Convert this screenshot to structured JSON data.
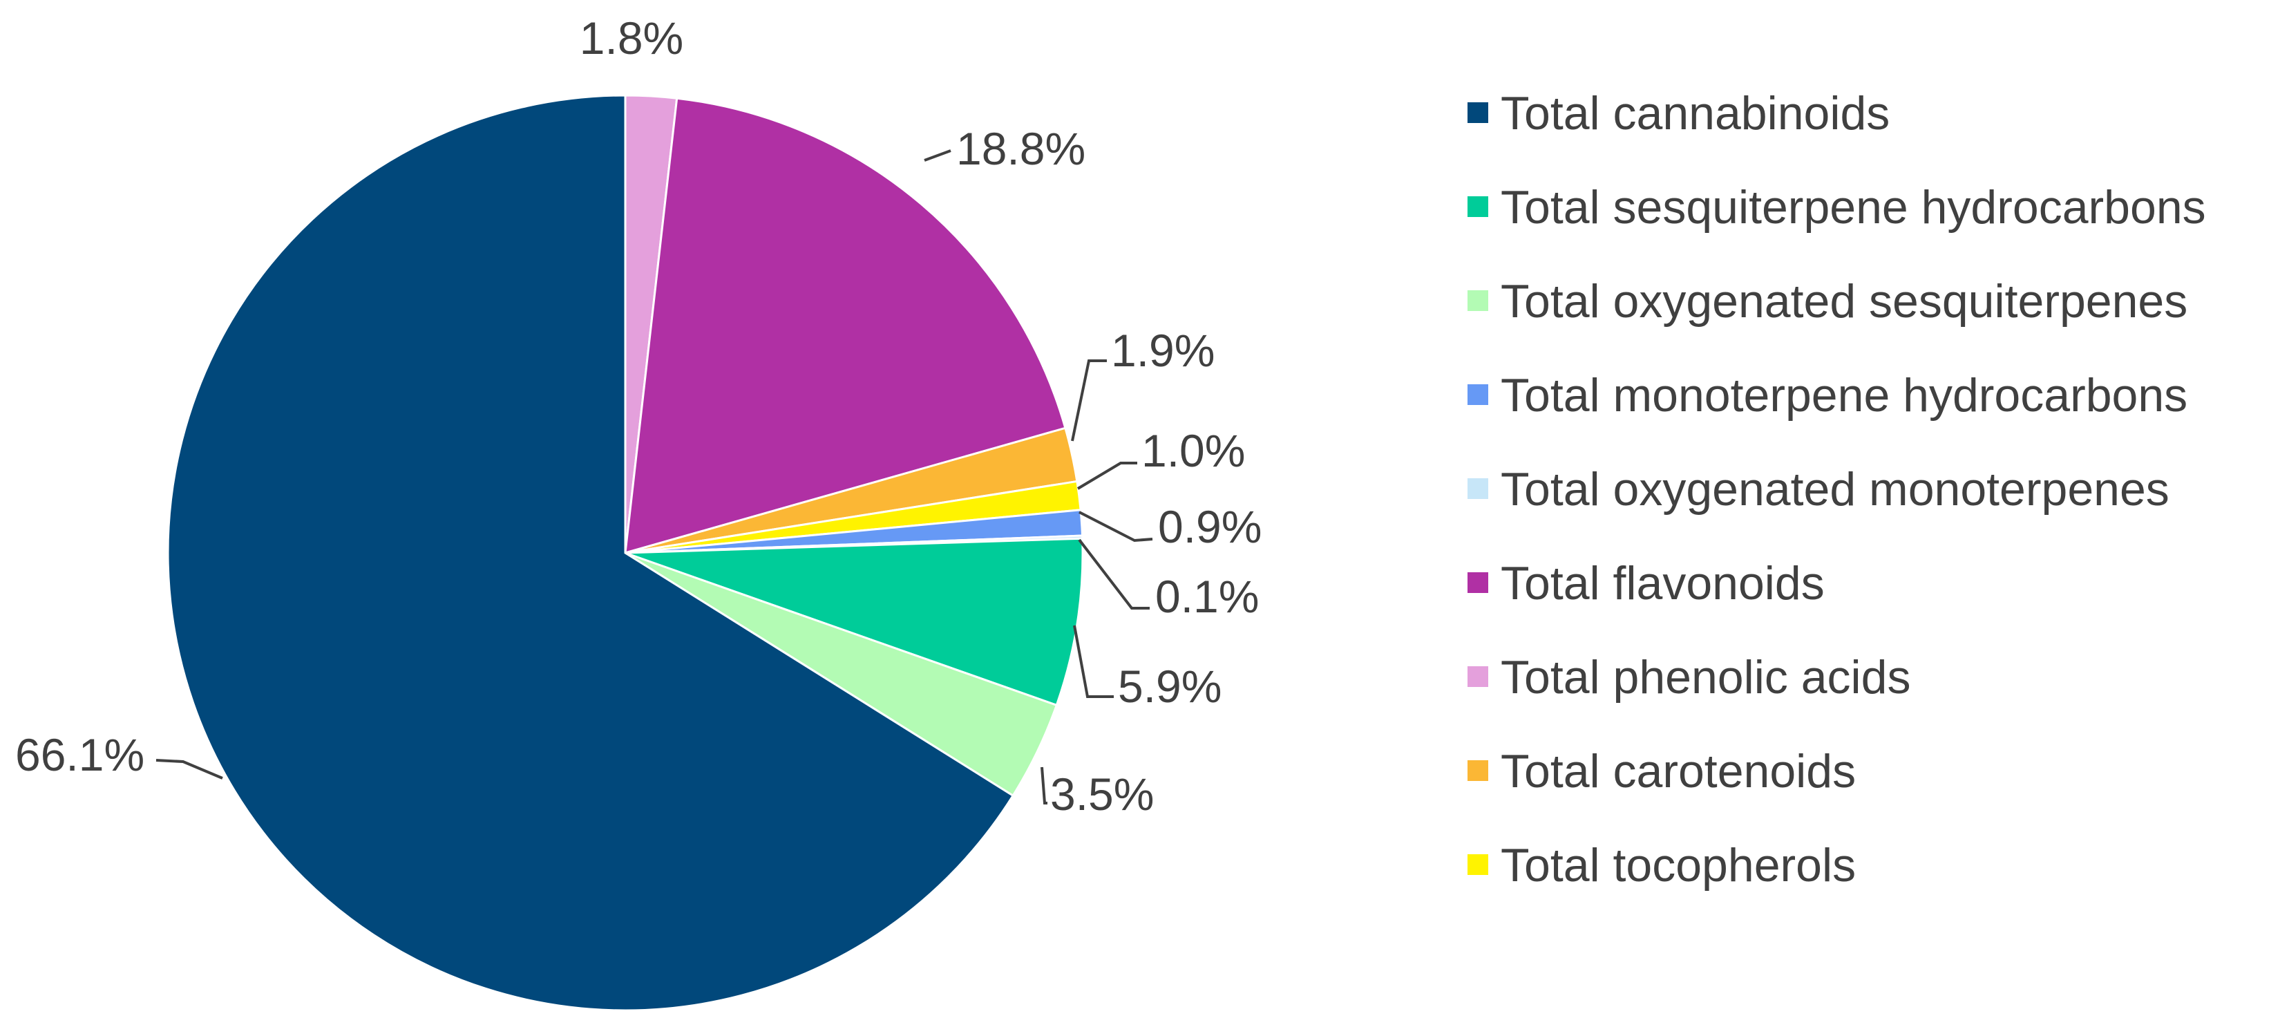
{
  "chart_data": {
    "type": "pie",
    "title": "",
    "start_angle_deg": 0,
    "direction": "clockwise",
    "legend_position": "right",
    "slices": [
      {
        "name": "Total phenolic acids",
        "value": 1.8,
        "label": "1.8%",
        "color": "#e4a0dc"
      },
      {
        "name": "Total flavonoids",
        "value": 18.8,
        "label": "18.8%",
        "color": "#b030a4"
      },
      {
        "name": "Total carotenoids",
        "value": 1.9,
        "label": "1.9%",
        "color": "#fbb735"
      },
      {
        "name": "Total tocopherols",
        "value": 1.0,
        "label": "1.0%",
        "color": "#fff300"
      },
      {
        "name": "Total monoterpene hydrocarbons",
        "value": 0.9,
        "label": "0.9%",
        "color": "#6699f5"
      },
      {
        "name": "Total oxygenated monoterpenes",
        "value": 0.1,
        "label": "0.1%",
        "color": "#c7e6f8"
      },
      {
        "name": "Total sesquiterpene hydrocarbons",
        "value": 5.9,
        "label": "5.9%",
        "color": "#00cc99"
      },
      {
        "name": "Total oxygenated sesquiterpenes",
        "value": 3.5,
        "label": "3.5%",
        "color": "#b3fbb4"
      },
      {
        "name": "Total cannabinoids",
        "value": 66.1,
        "label": "66.1%",
        "color": "#01487b"
      }
    ],
    "legend": [
      {
        "name": "Total cannabinoids",
        "color": "#01487b"
      },
      {
        "name": "Total sesquiterpene hydrocarbons",
        "color": "#00cc99"
      },
      {
        "name": "Total oxygenated sesquiterpenes",
        "color": "#b3fbb4"
      },
      {
        "name": "Total monoterpene hydrocarbons",
        "color": "#6699f5"
      },
      {
        "name": "Total oxygenated monoterpenes",
        "color": "#c7e6f8"
      },
      {
        "name": "Total flavonoids",
        "color": "#b030a4"
      },
      {
        "name": "Total phenolic acids",
        "color": "#e4a0dc"
      },
      {
        "name": "Total carotenoids",
        "color": "#fbb735"
      },
      {
        "name": "Total tocopherols",
        "color": "#fff300"
      }
    ]
  }
}
